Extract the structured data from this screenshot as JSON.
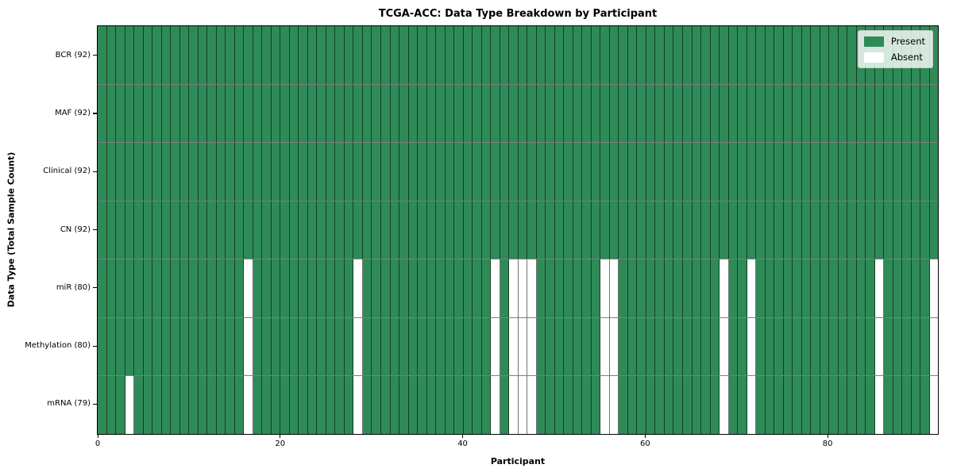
{
  "title": "TCGA-ACC: Data Type Breakdown by Participant",
  "axes": {
    "xlabel": "Participant",
    "ylabel": "Data Type (Total Sample Count)",
    "x_tick_labels": [
      "0",
      "20",
      "40",
      "60",
      "80"
    ]
  },
  "legend": {
    "present_label": "Present",
    "absent_label": "Absent"
  },
  "colors": {
    "present": "#2e8b57",
    "absent": "#ffffff",
    "cell_edge": "rgba(0,0,0,0.55)",
    "row_divider": "#7d7d7d",
    "plot_border": "#000000",
    "legend_background": "rgba(255,255,255,0.8)",
    "legend_border": "#c9c9c9"
  },
  "chart_data": {
    "type": "heatmap",
    "title": "TCGA-ACC: Data Type Breakdown by Participant",
    "xlabel": "Participant",
    "ylabel": "Data Type (Total Sample Count)",
    "x_range": [
      0,
      92
    ],
    "x_ticks": [
      0,
      20,
      40,
      60,
      80
    ],
    "n_participants": 92,
    "legend_labels": [
      "Present",
      "Absent"
    ],
    "legend_position": "upper right",
    "grid": false,
    "cell_values": "1 = Present (green), 0 = Absent (white)",
    "rows": [
      {
        "label": "BCR (92)",
        "present_count": 92,
        "absent_participants": []
      },
      {
        "label": "MAF (92)",
        "present_count": 92,
        "absent_participants": []
      },
      {
        "label": "Clinical (92)",
        "present_count": 92,
        "absent_participants": []
      },
      {
        "label": "CN (92)",
        "present_count": 92,
        "absent_participants": []
      },
      {
        "label": "miR (80)",
        "present_count": 80,
        "absent_participants": [
          16,
          28,
          43,
          45,
          46,
          47,
          55,
          56,
          68,
          71,
          85,
          91
        ]
      },
      {
        "label": "Methylation (80)",
        "present_count": 80,
        "absent_participants": [
          16,
          28,
          43,
          45,
          46,
          47,
          55,
          56,
          68,
          71,
          85,
          91
        ]
      },
      {
        "label": "mRNA (79)",
        "present_count": 79,
        "absent_participants": [
          3,
          16,
          28,
          43,
          45,
          46,
          47,
          55,
          56,
          68,
          71,
          85,
          91
        ]
      }
    ]
  }
}
